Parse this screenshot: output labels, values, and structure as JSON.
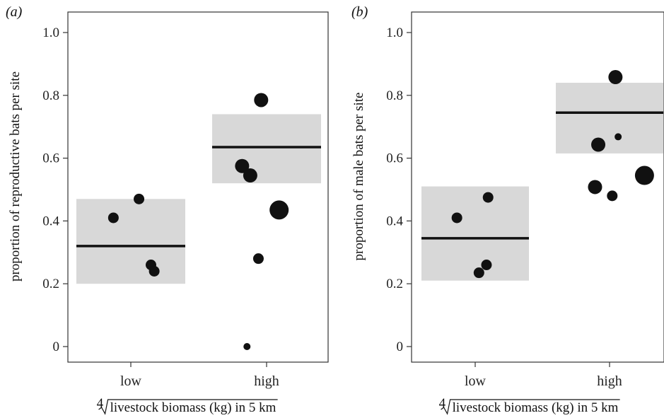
{
  "chart_data": [
    {
      "type": "scatter",
      "panel": "(a)",
      "panel_letter": "a",
      "title": "",
      "xlabel": "livestock biomass (kg) in 5 km",
      "xlabel_root": "4",
      "ylabel": "proportion of reproductive bats per site",
      "categories": [
        "low",
        "high"
      ],
      "ylim": [
        0,
        1.0
      ],
      "yticks": [
        "0",
        "0.2",
        "0.4",
        "0.6",
        "0.8",
        "1.0"
      ],
      "ytick_values": [
        0,
        0.2,
        0.4,
        0.6,
        0.8,
        1.0
      ],
      "grid": false,
      "summary": [
        {
          "category": "low",
          "mean": 0.32,
          "lower": 0.2,
          "upper": 0.47
        },
        {
          "category": "high",
          "mean": 0.635,
          "lower": 0.52,
          "upper": 0.74
        }
      ],
      "points": [
        {
          "category": "low",
          "offset": -0.32,
          "y": 0.41,
          "size": 1
        },
        {
          "category": "low",
          "offset": 0.15,
          "y": 0.47,
          "size": 1
        },
        {
          "category": "low",
          "offset": 0.37,
          "y": 0.26,
          "size": 1
        },
        {
          "category": "low",
          "offset": 0.43,
          "y": 0.24,
          "size": 1
        },
        {
          "category": "high",
          "offset": -0.1,
          "y": 0.785,
          "size": 2
        },
        {
          "category": "high",
          "offset": -0.45,
          "y": 0.575,
          "size": 2
        },
        {
          "category": "high",
          "offset": -0.3,
          "y": 0.545,
          "size": 2
        },
        {
          "category": "high",
          "offset": 0.23,
          "y": 0.435,
          "size": 3
        },
        {
          "category": "high",
          "offset": -0.15,
          "y": 0.28,
          "size": 1
        },
        {
          "category": "high",
          "offset": -0.36,
          "y": 0.0,
          "size": 0
        }
      ]
    },
    {
      "type": "scatter",
      "panel": "(b)",
      "panel_letter": "b",
      "title": "",
      "xlabel": "livestock biomass (kg) in 5 km",
      "xlabel_root": "4",
      "ylabel": "proportion of male bats per site",
      "categories": [
        "low",
        "high"
      ],
      "ylim": [
        0,
        1.0
      ],
      "yticks": [
        "0",
        "0.2",
        "0.4",
        "0.6",
        "0.8",
        "1.0"
      ],
      "ytick_values": [
        0,
        0.2,
        0.4,
        0.6,
        0.8,
        1.0
      ],
      "grid": false,
      "summary": [
        {
          "category": "low",
          "mean": 0.345,
          "lower": 0.21,
          "upper": 0.51
        },
        {
          "category": "high",
          "mean": 0.745,
          "lower": 0.615,
          "upper": 0.84
        }
      ],
      "points": [
        {
          "category": "low",
          "offset": -0.34,
          "y": 0.41,
          "size": 1
        },
        {
          "category": "low",
          "offset": 0.24,
          "y": 0.475,
          "size": 1
        },
        {
          "category": "low",
          "offset": 0.07,
          "y": 0.235,
          "size": 1
        },
        {
          "category": "low",
          "offset": 0.21,
          "y": 0.26,
          "size": 1
        },
        {
          "category": "high",
          "offset": 0.11,
          "y": 0.858,
          "size": 2
        },
        {
          "category": "high",
          "offset": 0.16,
          "y": 0.668,
          "size": 0
        },
        {
          "category": "high",
          "offset": -0.21,
          "y": 0.643,
          "size": 2
        },
        {
          "category": "high",
          "offset": -0.27,
          "y": 0.508,
          "size": 2
        },
        {
          "category": "high",
          "offset": 0.05,
          "y": 0.48,
          "size": 1
        },
        {
          "category": "high",
          "offset": 0.65,
          "y": 0.545,
          "size": 3
        }
      ]
    }
  ]
}
